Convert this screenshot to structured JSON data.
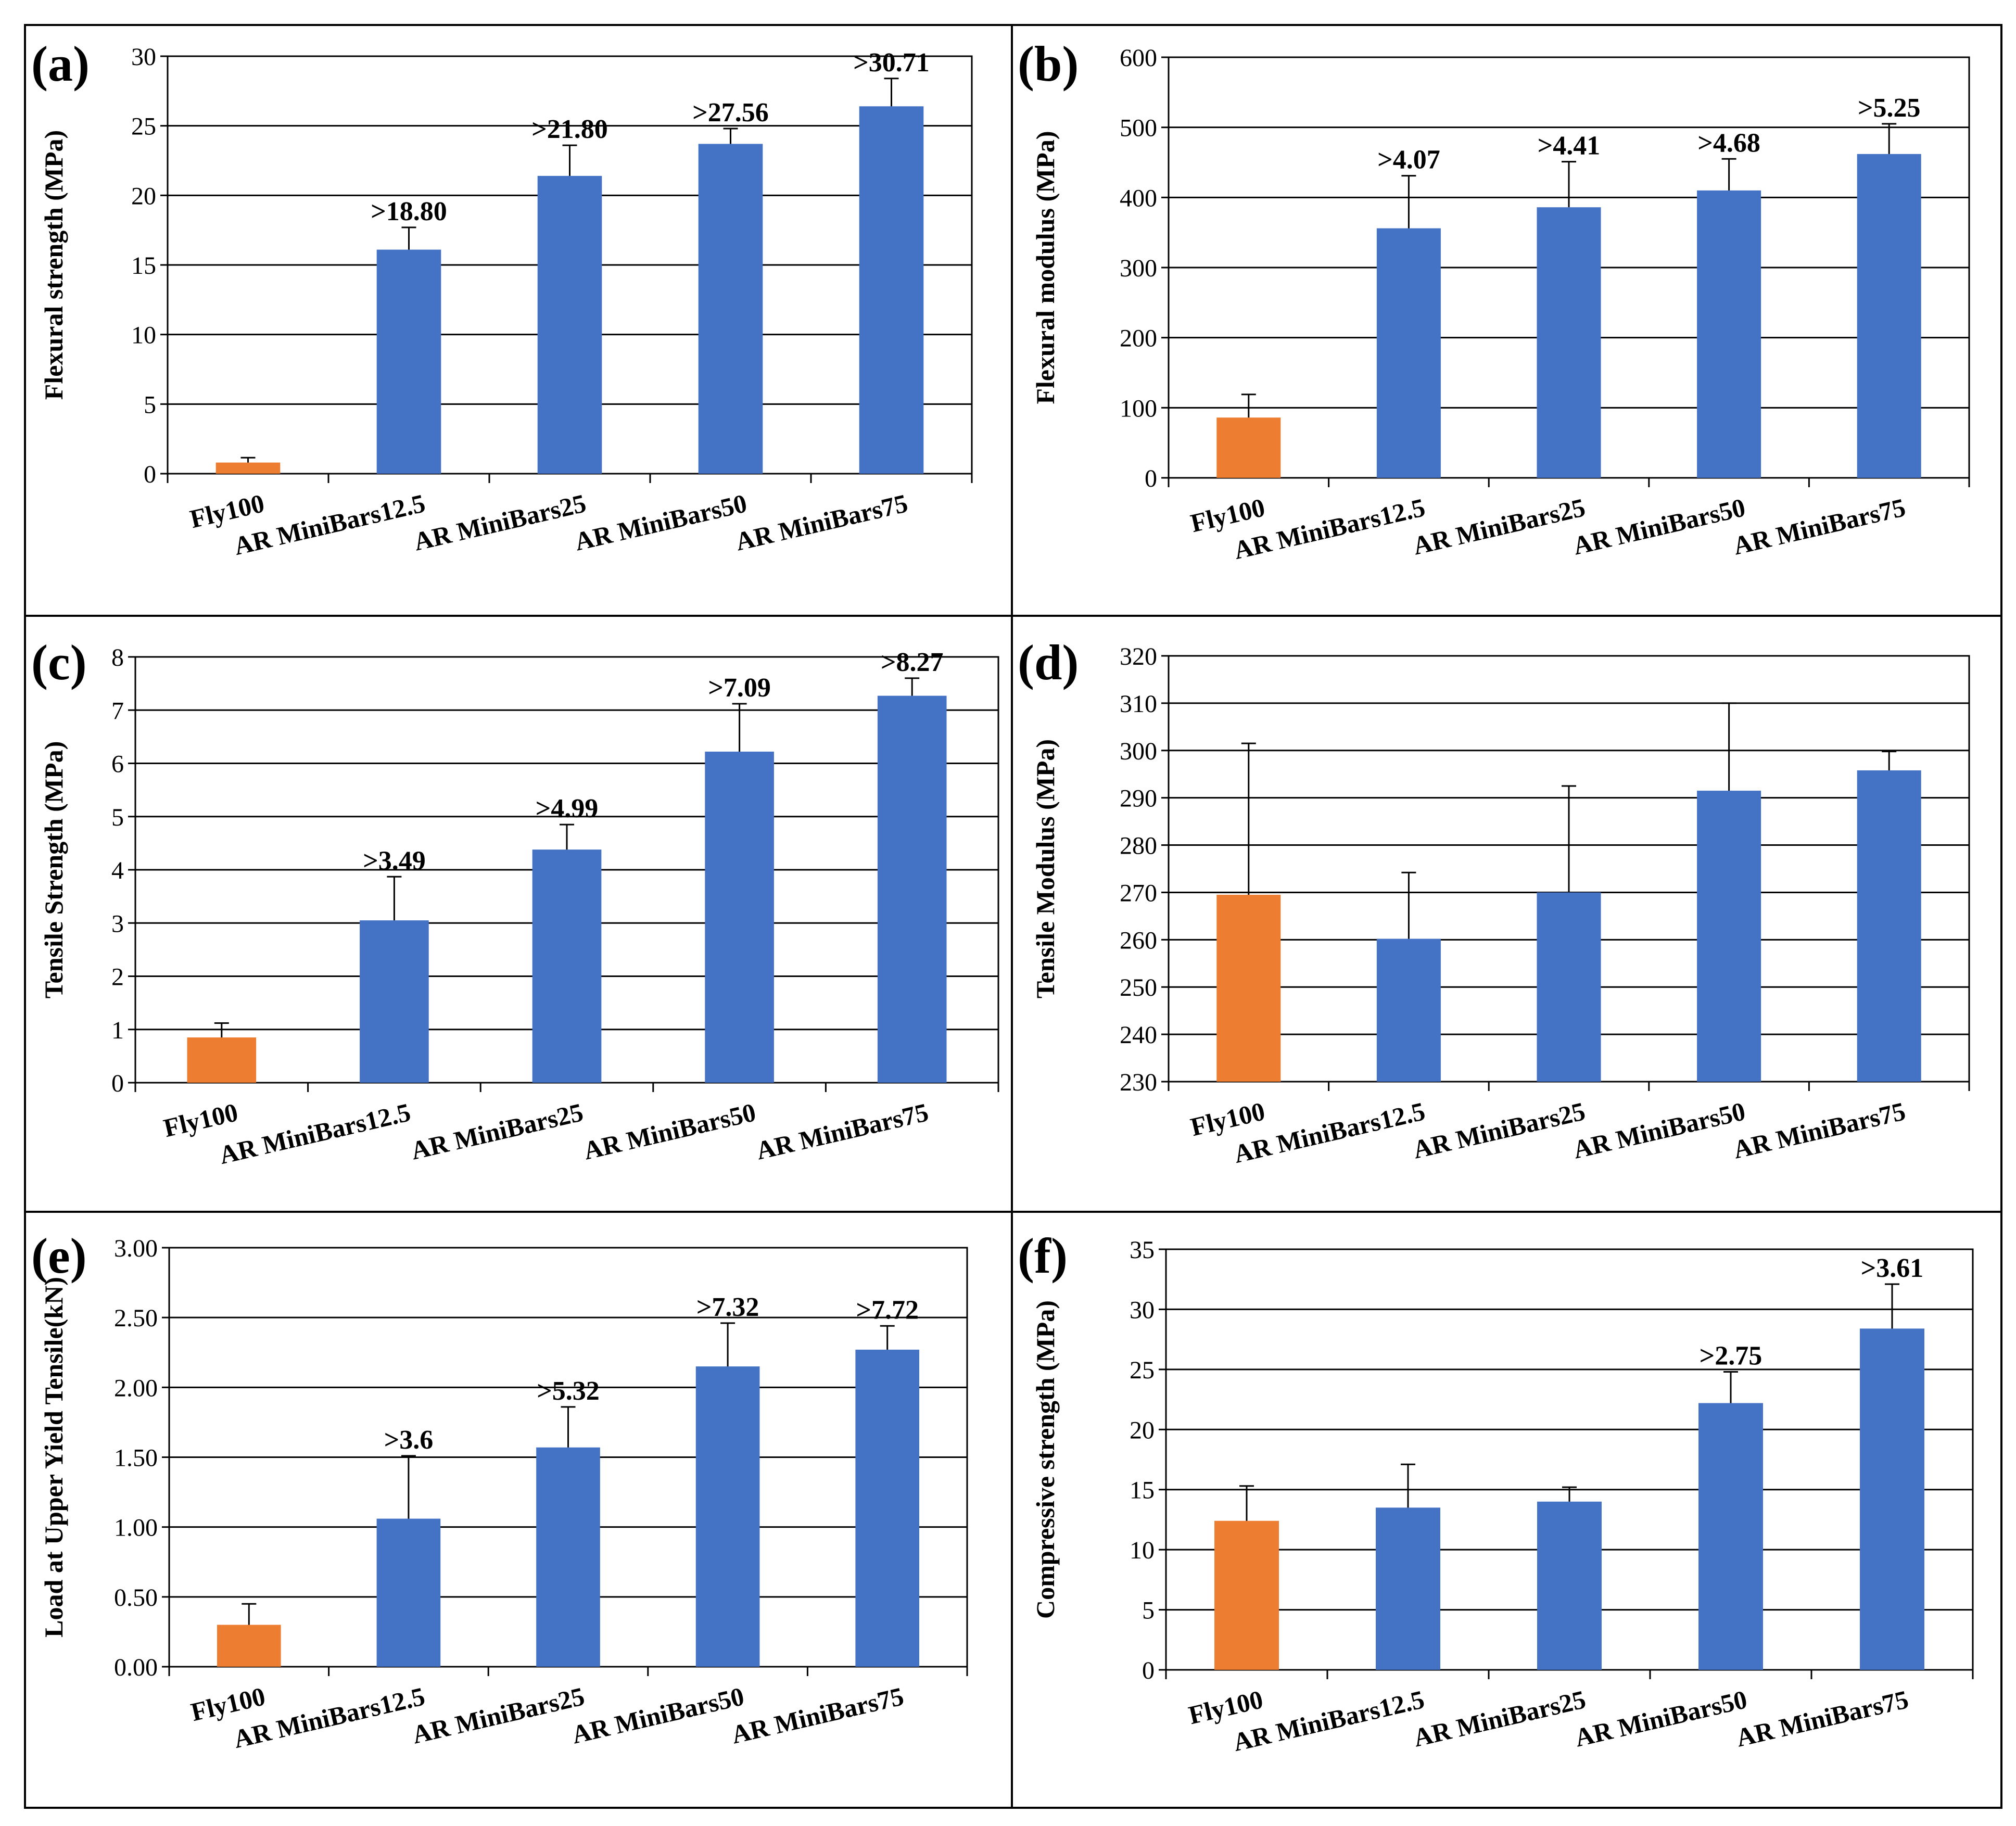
{
  "colors": {
    "orange": "#ED7D31",
    "blue": "#4472C4",
    "grid": "#000000",
    "text": "#000000"
  },
  "chart_data": [
    {
      "panel_label": "(a)",
      "type": "bar",
      "ylabel": "Flexural strength (MPa)",
      "ylim": [
        0,
        30
      ],
      "ytick_values": [
        0,
        5,
        10,
        15,
        20,
        25,
        30
      ],
      "ytick_labels": [
        "0",
        "5",
        "10",
        "15",
        "20",
        "25",
        "30"
      ],
      "categories": [
        "Fly100",
        "AR MiniBars12.5",
        "AR MiniBars25",
        "AR MiniBars50",
        "AR MiniBars75"
      ],
      "values": [
        0.8,
        16.1,
        21.4,
        23.7,
        26.4
      ],
      "errors": [
        0.35,
        1.6,
        2.2,
        1.1,
        2.0
      ],
      "annotations": [
        "",
        ">18.80",
        ">21.80",
        ">27.56",
        ">30.71"
      ],
      "bar_colors": [
        "orange",
        "blue",
        "blue",
        "blue",
        "blue"
      ],
      "grid": true
    },
    {
      "panel_label": "(b)",
      "type": "bar",
      "ylabel": "Flexural modulus (MPa)",
      "ylim": [
        0,
        600
      ],
      "ytick_values": [
        0,
        100,
        200,
        300,
        400,
        500,
        600
      ],
      "ytick_labels": [
        "0",
        "100",
        "200",
        "300",
        "400",
        "500",
        "600"
      ],
      "categories": [
        "Fly100",
        "AR MiniBars12.5",
        "AR MiniBars25",
        "AR MiniBars50",
        "AR MiniBars75"
      ],
      "values": [
        86,
        356,
        386,
        410,
        462
      ],
      "errors": [
        33,
        75,
        65,
        45,
        43
      ],
      "annotations": [
        "",
        ">4.07",
        ">4.41",
        ">4.68",
        ">5.25"
      ],
      "bar_colors": [
        "orange",
        "blue",
        "blue",
        "blue",
        "blue"
      ],
      "grid": true
    },
    {
      "panel_label": "(c)",
      "type": "bar",
      "ylabel": "Tensile Strength (MPa)",
      "ylim": [
        0,
        8
      ],
      "ytick_values": [
        0,
        1,
        2,
        3,
        4,
        5,
        6,
        7,
        8
      ],
      "ytick_labels": [
        "0",
        "1",
        "2",
        "3",
        "4",
        "5",
        "6",
        "7",
        "8"
      ],
      "categories": [
        "Fly100",
        "AR MiniBars12.5",
        "AR MiniBars25",
        "AR MiniBars50",
        "AR MiniBars75"
      ],
      "values": [
        0.85,
        3.05,
        4.38,
        6.22,
        7.27
      ],
      "errors": [
        0.27,
        0.82,
        0.47,
        0.9,
        0.33
      ],
      "annotations": [
        "",
        ">3.49",
        ">4.99",
        ">7.09",
        ">8.27"
      ],
      "bar_colors": [
        "orange",
        "blue",
        "blue",
        "blue",
        "blue"
      ],
      "grid": true
    },
    {
      "panel_label": "(d)",
      "type": "bar",
      "ylabel": "Tensile Modulus (MPa)",
      "ylim": [
        230,
        320
      ],
      "ytick_values": [
        230,
        240,
        250,
        260,
        270,
        280,
        290,
        300,
        310,
        320
      ],
      "ytick_labels": [
        "230",
        "240",
        "250",
        "260",
        "270",
        "280",
        "290",
        "300",
        "310",
        "320"
      ],
      "categories": [
        "Fly100",
        "AR MiniBars12.5",
        "AR MiniBars25",
        "AR MiniBars50",
        "AR MiniBars75"
      ],
      "values": [
        269.5,
        260.2,
        270.0,
        291.5,
        295.8
      ],
      "errors": [
        32,
        14,
        22.5,
        18.5,
        4
      ],
      "annotations": [
        "",
        "",
        "",
        "",
        ""
      ],
      "bar_colors": [
        "orange",
        "blue",
        "blue",
        "blue",
        "blue"
      ],
      "grid": true
    },
    {
      "panel_label": "(e)",
      "type": "bar",
      "ylabel": "Load at Upper Yield  Tensile(kN)",
      "ylim": [
        0,
        3
      ],
      "ytick_values": [
        0,
        0.5,
        1,
        1.5,
        2,
        2.5,
        3
      ],
      "ytick_labels": [
        "0.00",
        "0.50",
        "1.00",
        "1.50",
        "2.00",
        "2.50",
        "3.00"
      ],
      "categories": [
        "Fly100",
        "AR MiniBars12.5",
        "AR MiniBars25",
        "AR MiniBars50",
        "AR MiniBars75"
      ],
      "values": [
        0.3,
        1.06,
        1.57,
        2.15,
        2.27
      ],
      "errors": [
        0.15,
        0.45,
        0.29,
        0.31,
        0.17
      ],
      "annotations": [
        "",
        ">3.6",
        ">5.32",
        ">7.32",
        ">7.72"
      ],
      "bar_colors": [
        "orange",
        "blue",
        "blue",
        "blue",
        "blue"
      ],
      "grid": true
    },
    {
      "panel_label": "(f)",
      "type": "bar",
      "ylabel": "Compressive strength (MPa)",
      "ylim": [
        0,
        35
      ],
      "ytick_values": [
        0,
        5,
        10,
        15,
        20,
        25,
        30,
        35
      ],
      "ytick_labels": [
        "0",
        "5",
        "10",
        "15",
        "20",
        "25",
        "30",
        "35"
      ],
      "categories": [
        "Fly100",
        "AR MiniBars12.5",
        "AR MiniBars25",
        "AR MiniBars50",
        "AR MiniBars75"
      ],
      "values": [
        12.4,
        13.5,
        14.0,
        22.2,
        28.4
      ],
      "errors": [
        2.9,
        3.6,
        1.2,
        2.6,
        3.7
      ],
      "annotations": [
        "",
        "",
        "",
        ">2.75",
        ">3.61"
      ],
      "bar_colors": [
        "orange",
        "blue",
        "blue",
        "blue",
        "blue"
      ],
      "grid": true
    }
  ]
}
